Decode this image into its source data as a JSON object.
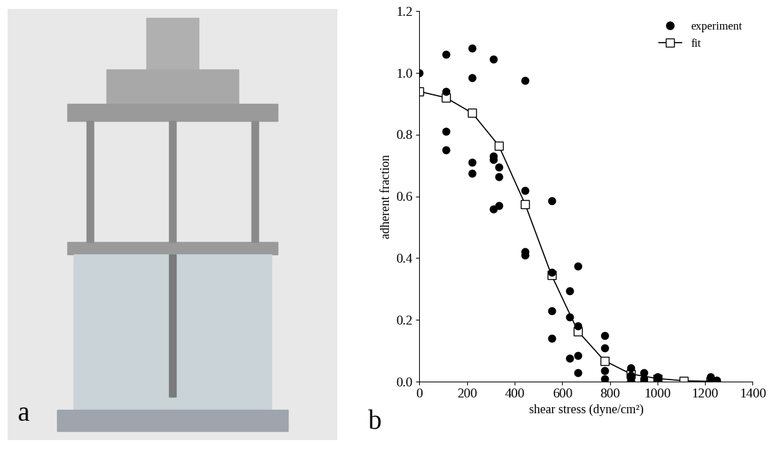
{
  "panel_labels": [
    "a",
    "b"
  ],
  "chart_data": {
    "type": "scatter",
    "x_label": "shear stress (dyne/cm²)",
    "y_label": "adherent fraction",
    "xlim": [
      0,
      1400
    ],
    "xticks": [
      0,
      200,
      400,
      600,
      800,
      1000,
      1200,
      1400
    ],
    "ylim": [
      0,
      1.2
    ],
    "yticks": [
      {
        "value": 0,
        "label": "0.0"
      },
      {
        "value": 0.2,
        "label": "0.2"
      },
      {
        "value": 0.4,
        "label": "0.4"
      },
      {
        "value": 0.6,
        "label": "0.6"
      },
      {
        "value": 0.8,
        "label": "0.8"
      },
      {
        "value": 1,
        "label": "1.0"
      },
      {
        "value": 1.2,
        "label": "1.2"
      }
    ],
    "legend": "upper right",
    "grid": false,
    "series": [
      {
        "name": "experiment",
        "type": "scatter",
        "color": "#000000",
        "marker": "circle",
        "x": [
          0,
          111,
          111,
          111,
          111,
          222,
          222,
          222,
          222,
          311,
          311,
          311,
          311,
          333,
          333,
          333,
          444,
          444,
          444,
          444,
          555,
          555,
          555,
          555,
          630,
          630,
          630,
          666,
          666,
          666,
          666,
          777,
          777,
          777,
          777,
          888,
          888,
          888,
          888,
          944,
          944,
          944,
          1000,
          1000,
          1222,
          1222,
          1250,
          1250
        ],
        "values": [
          1.0,
          1.06,
          0.94,
          0.81,
          0.75,
          1.08,
          0.985,
          0.71,
          0.675,
          1.045,
          0.73,
          0.72,
          0.56,
          0.695,
          0.665,
          0.57,
          0.975,
          0.62,
          0.42,
          0.41,
          0.585,
          0.355,
          0.23,
          0.14,
          0.295,
          0.21,
          0.075,
          0.375,
          0.18,
          0.085,
          0.03,
          0.15,
          0.11,
          0.035,
          0.01,
          0.045,
          0.02,
          0.005,
          0.0,
          0.03,
          0.01,
          0.0,
          0.015,
          0.005,
          0.015,
          0.0,
          0.005,
          0.0
        ]
      },
      {
        "name": "fit",
        "type": "line",
        "color": "#000000",
        "marker": "square",
        "x": [
          0,
          111,
          222,
          333,
          444,
          555,
          666,
          777,
          888,
          1000,
          1110,
          1222
        ],
        "values": [
          0.94,
          0.92,
          0.87,
          0.765,
          0.575,
          0.345,
          0.163,
          0.068,
          0.025,
          0.01,
          0.003,
          0.001
        ]
      }
    ]
  }
}
